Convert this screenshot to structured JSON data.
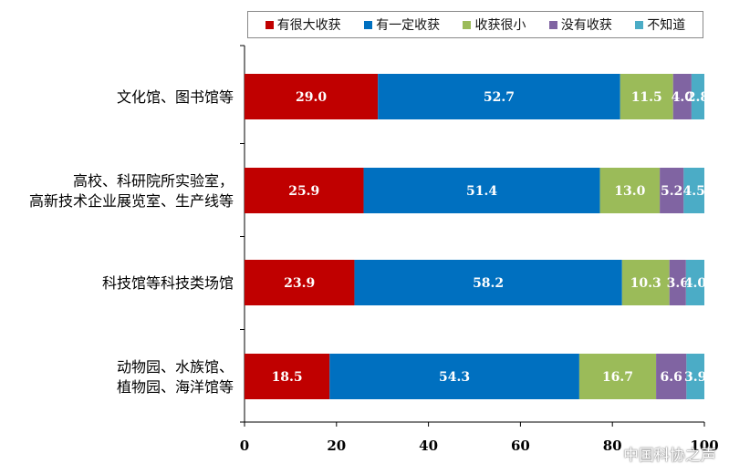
{
  "chart_data": {
    "type": "bar",
    "orientation": "horizontal",
    "stacked": true,
    "categories": [
      [
        "文化馆、图书馆等"
      ],
      [
        "高校、科研院所实验室，",
        "高新技术企业展览室、生产线等"
      ],
      [
        "科技馆等科技类场馆"
      ],
      [
        "动物园、水族馆、",
        "植物园、海洋馆等"
      ]
    ],
    "series": [
      {
        "name": "有很大收获",
        "color": "#c00000",
        "values": [
          29.0,
          25.9,
          23.9,
          18.5
        ],
        "labels": [
          "29.0",
          "25.9",
          "23.9",
          "18.5"
        ]
      },
      {
        "name": "有一定收获",
        "color": "#0070c0",
        "values": [
          52.7,
          51.4,
          58.2,
          54.3
        ],
        "labels": [
          "52.7",
          "51.4",
          "58.2",
          "54.3"
        ]
      },
      {
        "name": "收获很小",
        "color": "#9bbb59",
        "values": [
          11.5,
          13.0,
          10.3,
          16.7
        ],
        "labels": [
          "11.5",
          "13.0",
          "10.3",
          "16.7"
        ]
      },
      {
        "name": "没有收获",
        "color": "#8064a2",
        "values": [
          4.0,
          5.2,
          3.6,
          6.6
        ],
        "labels": [
          "4.0",
          "5.2",
          "3.6",
          "6.6"
        ]
      },
      {
        "name": "不知道",
        "color": "#4bacc6",
        "values": [
          2.8,
          4.5,
          4.0,
          3.9
        ],
        "labels": [
          "2.8",
          "4.5",
          "4.0",
          "3.9"
        ]
      }
    ],
    "xlim": [
      0,
      100
    ],
    "xticks": [
      "0",
      "20",
      "40",
      "60",
      "80",
      "100"
    ],
    "legend_position": "top",
    "grid": false
  },
  "watermark": "中国科协之声"
}
